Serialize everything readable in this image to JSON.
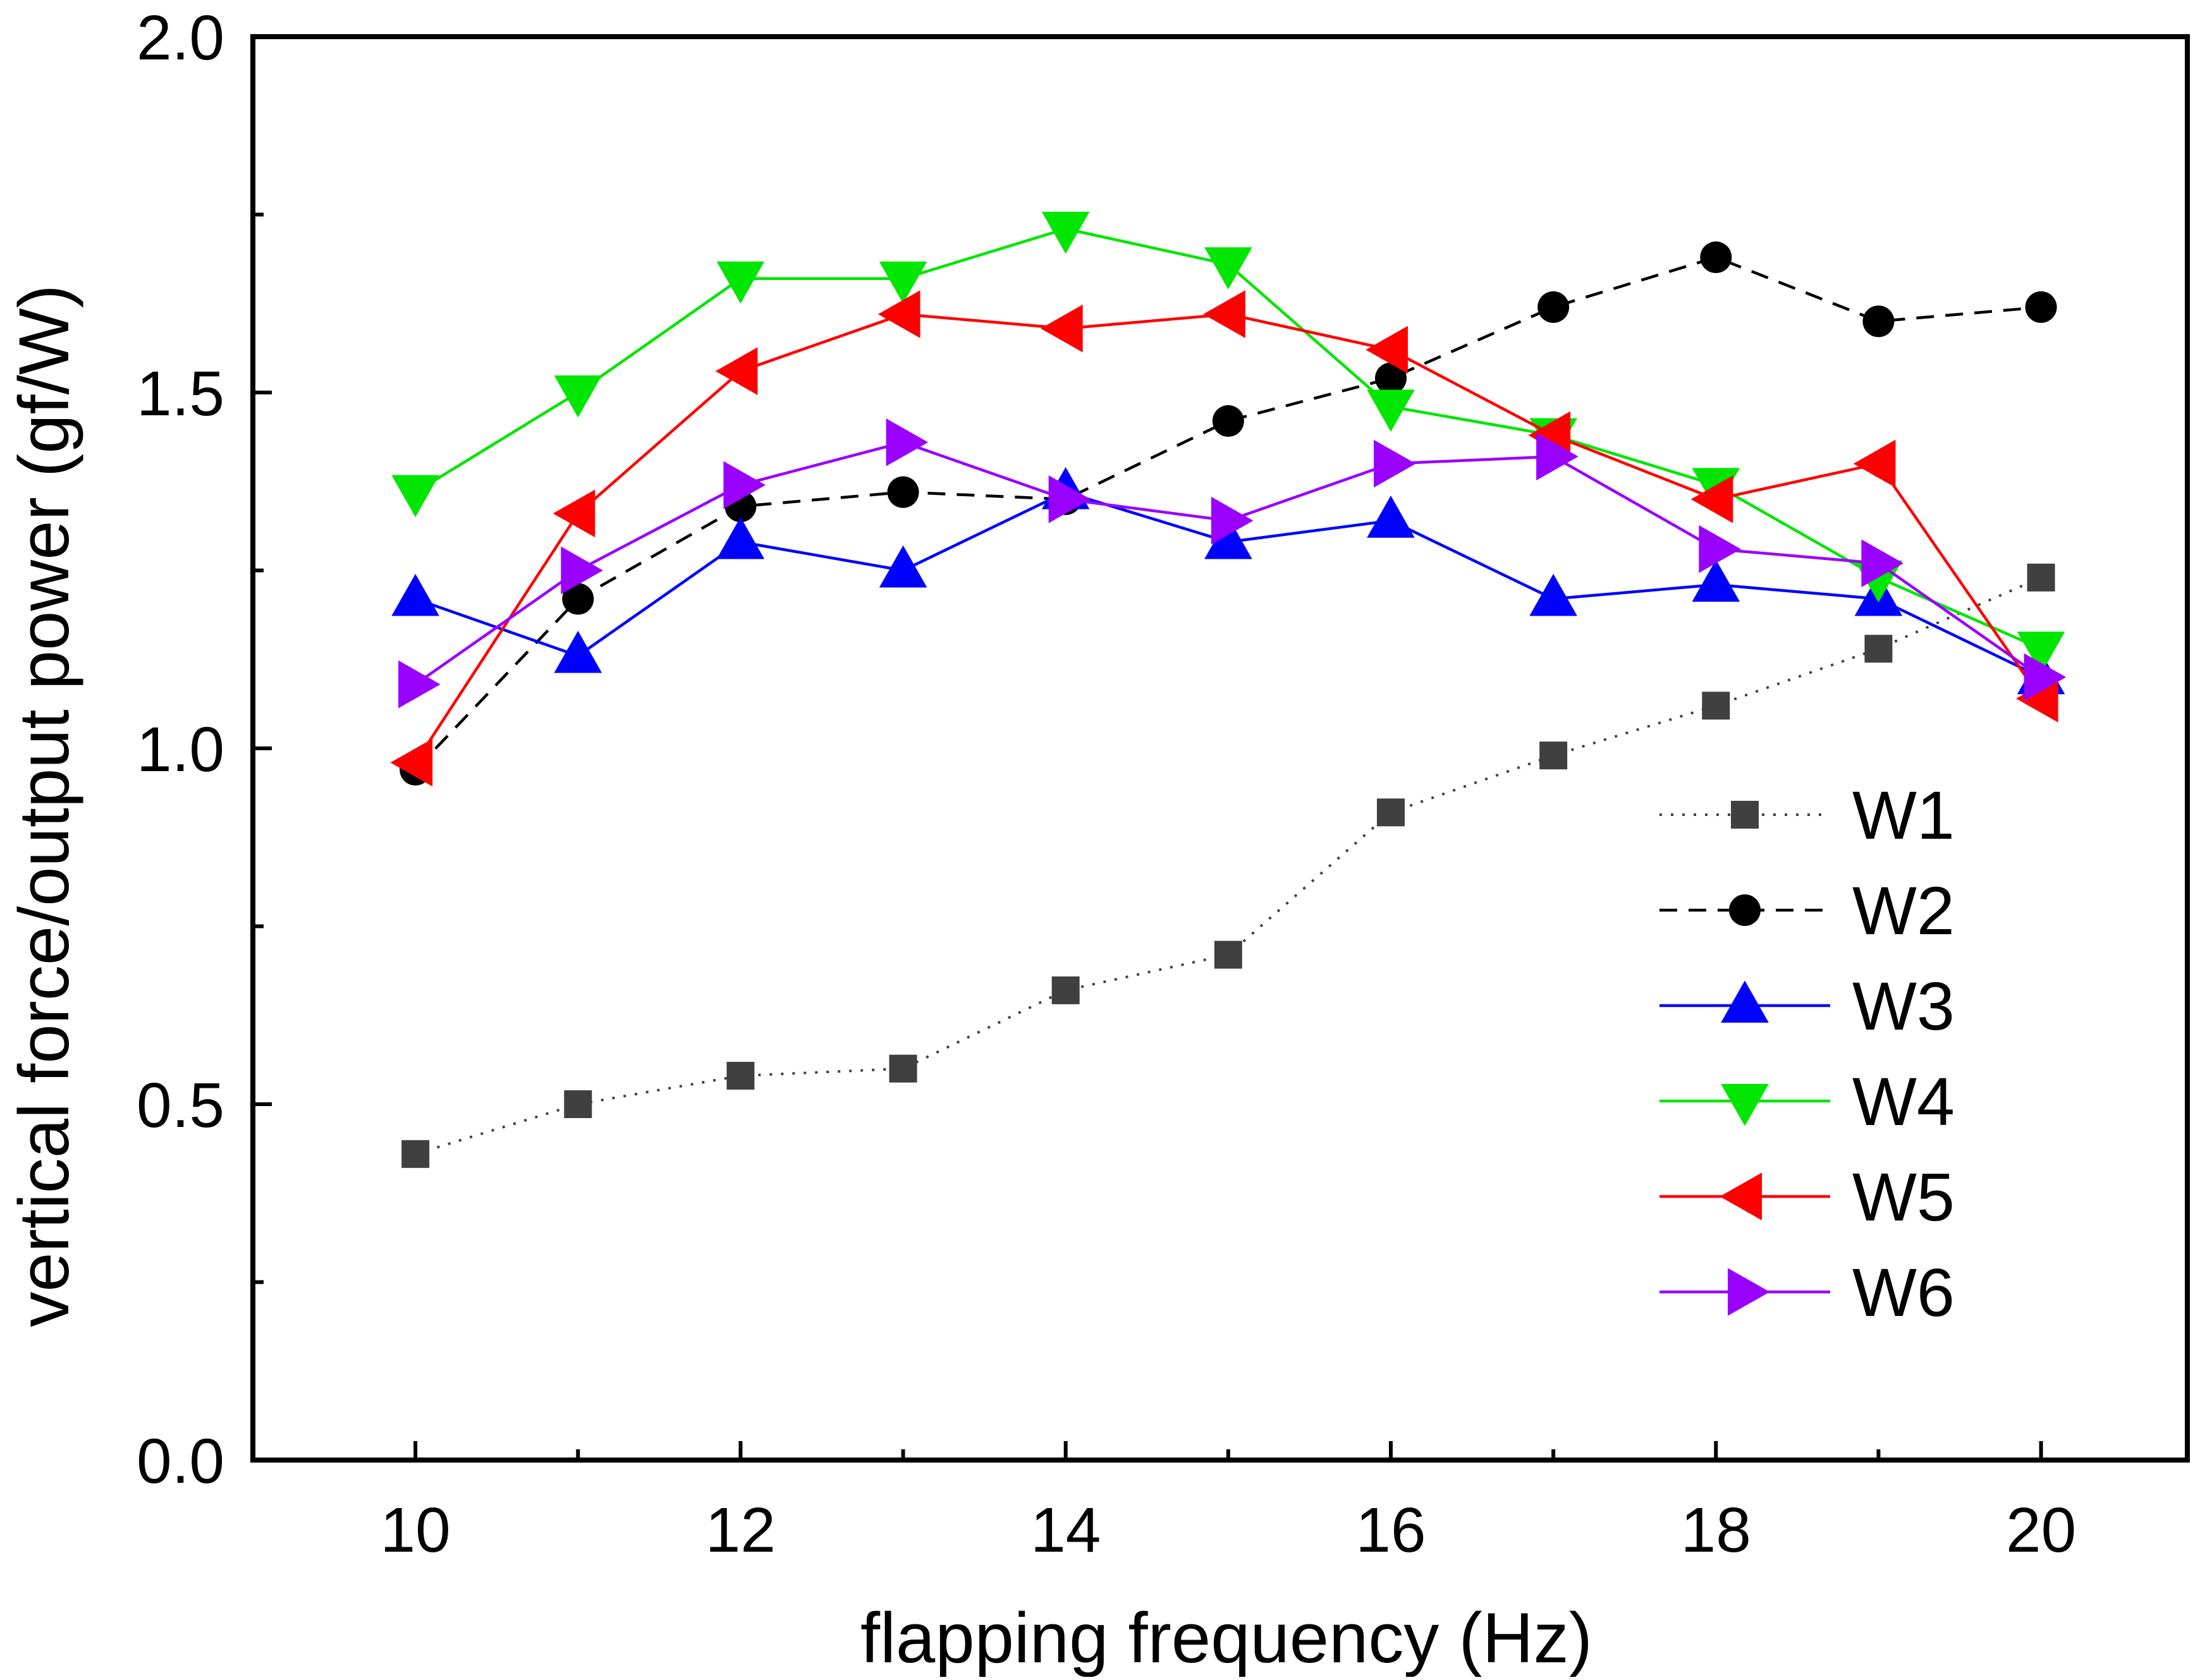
{
  "chart_data": {
    "type": "line",
    "title": "",
    "xlabel": "flapping frequency (Hz)",
    "ylabel": "vertical force/output power (gf/W)",
    "xlim": [
      9,
      20.9
    ],
    "ylim": [
      0,
      2.0
    ],
    "xticks": [
      10,
      12,
      14,
      16,
      18,
      20
    ],
    "xtick_labels": [
      "10",
      "12",
      "14",
      "16",
      "18",
      "20"
    ],
    "yticks": [
      0,
      0.5,
      1.0,
      1.5,
      2.0
    ],
    "ytick_labels": [
      "0.0",
      "0.5",
      "1.0",
      "1.5",
      "2.0"
    ],
    "grid": false,
    "legend_position": "bottom-right",
    "x": [
      10,
      11,
      12,
      13,
      14,
      15,
      16,
      17,
      18,
      19,
      20
    ],
    "series": [
      {
        "name": "W1",
        "color": "#404040",
        "line_style": "dotted",
        "marker": "square",
        "values": [
          0.43,
          0.5,
          0.54,
          0.55,
          0.66,
          0.71,
          0.91,
          0.99,
          1.06,
          1.14,
          1.24
        ]
      },
      {
        "name": "W2",
        "color": "#000000",
        "line_style": "dashed",
        "marker": "circle",
        "values": [
          0.97,
          1.21,
          1.34,
          1.36,
          1.35,
          1.46,
          1.52,
          1.62,
          1.69,
          1.6,
          1.62
        ]
      },
      {
        "name": "W3",
        "color": "#0000ff",
        "line_style": "solid",
        "marker": "triangle-up",
        "values": [
          1.21,
          1.13,
          1.29,
          1.25,
          1.36,
          1.29,
          1.32,
          1.21,
          1.23,
          1.21,
          1.1
        ]
      },
      {
        "name": "W4",
        "color": "#00e600",
        "line_style": "solid",
        "marker": "triangle-down",
        "values": [
          1.36,
          1.5,
          1.66,
          1.66,
          1.73,
          1.68,
          1.48,
          1.44,
          1.37,
          1.24,
          1.14
        ]
      },
      {
        "name": "W5",
        "color": "#ff0000",
        "line_style": "solid",
        "marker": "triangle-left",
        "values": [
          0.98,
          1.33,
          1.53,
          1.61,
          1.59,
          1.61,
          1.56,
          1.44,
          1.35,
          1.4,
          1.07
        ]
      },
      {
        "name": "W6",
        "color": "#9900ff",
        "line_style": "solid",
        "marker": "triangle-right",
        "values": [
          1.09,
          1.25,
          1.37,
          1.43,
          1.35,
          1.32,
          1.4,
          1.41,
          1.28,
          1.26,
          1.1
        ]
      }
    ]
  }
}
